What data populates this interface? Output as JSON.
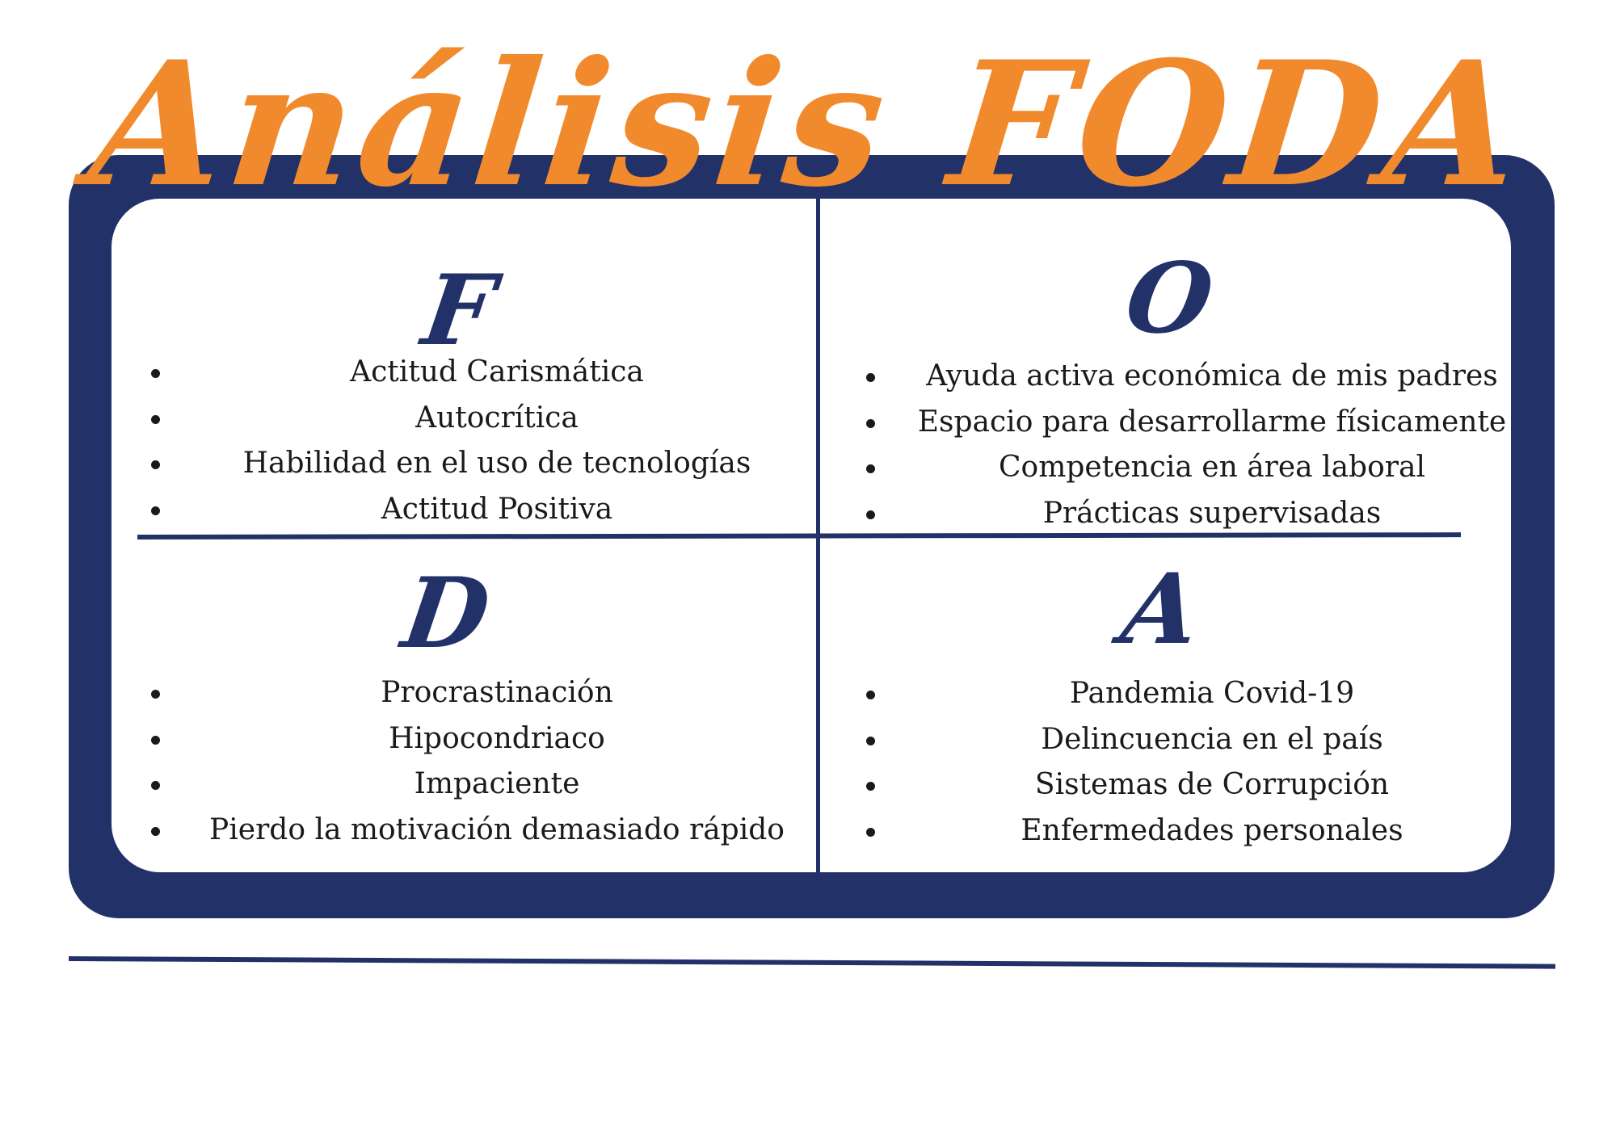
{
  "title": "Análisis FODA",
  "colors": {
    "frame": "#223269",
    "title": "#f18a2c",
    "text": "#1a1a1a",
    "background": "#ffffff"
  },
  "quadrants": {
    "fortalezas": {
      "letter": "F",
      "items": [
        "Actitud Carismática",
        "Autocrítica",
        "Habilidad en el uso de tecnologías",
        "Actitud Positiva"
      ]
    },
    "oportunidades": {
      "letter": "O",
      "items": [
        "Ayuda activa económica de mis padres",
        "Espacio para desarrollarme físicamente",
        "Competencia en área laboral",
        "Prácticas supervisadas"
      ]
    },
    "debilidades": {
      "letter": "D",
      "items": [
        "Procrastinación",
        "Hipocondriaco",
        "Impaciente",
        "Pierdo la motivación demasiado rápido"
      ]
    },
    "amenazas": {
      "letter": "A",
      "items": [
        "Pandemia Covid-19",
        "Delincuencia en el país",
        "Sistemas de Corrupción",
        "Enfermedades personales"
      ]
    }
  }
}
